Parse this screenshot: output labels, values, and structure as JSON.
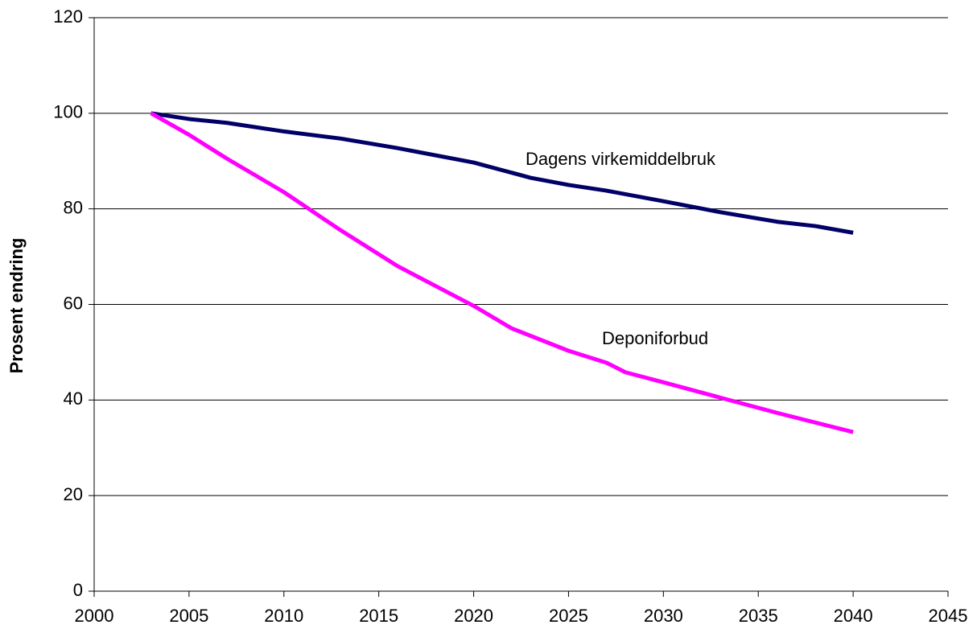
{
  "chart_data": {
    "type": "line",
    "y_label": "Prosent endring",
    "xlim": [
      2000,
      2045
    ],
    "xticks": [
      2000,
      2005,
      2010,
      2015,
      2020,
      2025,
      2030,
      2035,
      2040,
      2045
    ],
    "ylim": [
      0,
      120
    ],
    "yticks": [
      0,
      20,
      40,
      60,
      80,
      100,
      120
    ],
    "grid": true,
    "series": [
      {
        "name": "Dagens virkemiddelbruk",
        "color": "#000066",
        "x": [
          2003,
          2005,
          2007,
          2010,
          2013,
          2016,
          2020,
          2023,
          2025,
          2027,
          2030,
          2033,
          2036,
          2038,
          2040
        ],
        "values": [
          100,
          98.8,
          98,
          96.2,
          94.7,
          92.7,
          89.7,
          86.5,
          85,
          83.8,
          81.6,
          79.3,
          77.3,
          76.4,
          75
        ]
      },
      {
        "name": "Deponiforbud",
        "color": "#ff00ff",
        "x": [
          2003,
          2005,
          2007,
          2010,
          2013,
          2016,
          2020,
          2022,
          2025,
          2027,
          2028,
          2030,
          2033,
          2036,
          2040
        ],
        "values": [
          100,
          95.5,
          90.5,
          83.5,
          75.5,
          68,
          59.7,
          55,
          50.3,
          47.8,
          45.8,
          43.7,
          40.5,
          37.3,
          33.3
        ]
      }
    ]
  }
}
